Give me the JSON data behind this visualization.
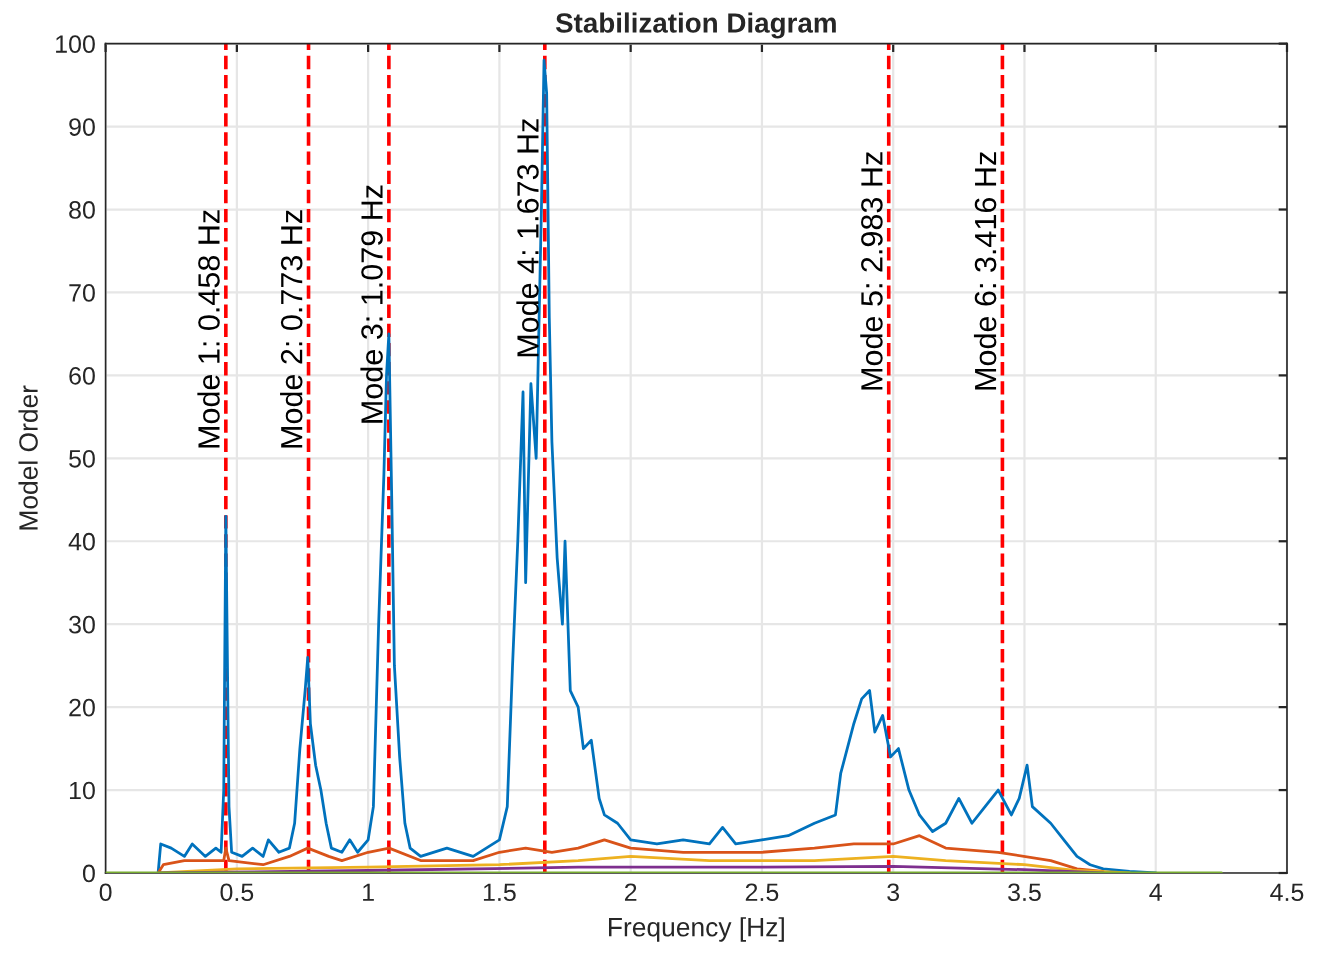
{
  "chart_data": {
    "type": "line",
    "title": "Stabilization Diagram",
    "xlabel": "Frequency [Hz]",
    "ylabel": "Model Order",
    "xlim": [
      0,
      4.5
    ],
    "xticks": [
      0,
      0.5,
      1,
      1.5,
      2,
      2.5,
      3,
      3.5,
      4,
      4.5
    ],
    "ylim": [
      0,
      100
    ],
    "yticks": [
      0,
      10,
      20,
      30,
      40,
      50,
      60,
      70,
      80,
      90,
      100
    ],
    "grid": true,
    "marker": "none",
    "line_style": "solid",
    "series": [
      {
        "color": "#0072bd",
        "x": [
          0.2,
          0.21,
          0.25,
          0.3,
          0.33,
          0.38,
          0.42,
          0.44,
          0.45,
          0.458,
          0.47,
          0.48,
          0.52,
          0.56,
          0.6,
          0.62,
          0.66,
          0.7,
          0.72,
          0.74,
          0.76,
          0.77,
          0.78,
          0.8,
          0.82,
          0.84,
          0.86,
          0.9,
          0.93,
          0.96,
          1.0,
          1.02,
          1.04,
          1.06,
          1.07,
          1.079,
          1.09,
          1.1,
          1.12,
          1.14,
          1.16,
          1.2,
          1.3,
          1.4,
          1.45,
          1.5,
          1.53,
          1.55,
          1.57,
          1.59,
          1.6,
          1.62,
          1.64,
          1.66,
          1.67,
          1.68,
          1.69,
          1.7,
          1.72,
          1.74,
          1.75,
          1.77,
          1.8,
          1.82,
          1.85,
          1.88,
          1.9,
          1.95,
          2.0,
          2.1,
          2.2,
          2.3,
          2.35,
          2.4,
          2.5,
          2.6,
          2.7,
          2.78,
          2.8,
          2.85,
          2.88,
          2.91,
          2.93,
          2.96,
          2.99,
          3.02,
          3.06,
          3.1,
          3.15,
          3.2,
          3.25,
          3.3,
          3.35,
          3.4,
          3.45,
          3.48,
          3.51,
          3.53,
          3.6,
          3.65,
          3.7,
          3.75,
          3.8,
          3.9,
          4.0
        ],
        "values": [
          0,
          3.5,
          3,
          2,
          3.5,
          2,
          3,
          2.5,
          10,
          43,
          8,
          2.5,
          2,
          3,
          2,
          4,
          2.5,
          3,
          6,
          15,
          22,
          26,
          18,
          13,
          10,
          6,
          3,
          2.5,
          4,
          2.5,
          4,
          8,
          30,
          48,
          60,
          65,
          45,
          25,
          14,
          6,
          3,
          2,
          3,
          2,
          3,
          4,
          8,
          25,
          40,
          58,
          35,
          59,
          50,
          80,
          98,
          94,
          67,
          52,
          38,
          30,
          40,
          22,
          20,
          15,
          16,
          9,
          7,
          6,
          4,
          3.5,
          4,
          3.5,
          5.5,
          3.5,
          4,
          4.5,
          6,
          7,
          12,
          18,
          21,
          22,
          17,
          19,
          14,
          15,
          10,
          7,
          5,
          6,
          9,
          6,
          8,
          10,
          7,
          9,
          13,
          8,
          6,
          4,
          2,
          1,
          0.5,
          0.2,
          0
        ]
      },
      {
        "color": "#d95319",
        "x": [
          0.2,
          0.22,
          0.3,
          0.45,
          0.458,
          0.47,
          0.6,
          0.7,
          0.77,
          0.85,
          0.9,
          1.0,
          1.08,
          1.2,
          1.4,
          1.5,
          1.6,
          1.7,
          1.8,
          1.9,
          2.0,
          2.2,
          2.5,
          2.7,
          2.85,
          3.0,
          3.1,
          3.2,
          3.4,
          3.6,
          3.7,
          3.8
        ],
        "values": [
          0,
          1,
          1.5,
          1.5,
          3,
          1.5,
          1,
          2,
          3,
          2,
          1.5,
          2.5,
          3,
          1.5,
          1.5,
          2.5,
          3,
          2.5,
          3,
          4,
          3,
          2.5,
          2.5,
          3,
          3.5,
          3.5,
          4.5,
          3,
          2.5,
          1.5,
          0.5,
          0.2
        ]
      },
      {
        "color": "#edb120",
        "x": [
          0.2,
          0.5,
          1.0,
          1.5,
          1.8,
          2.0,
          2.3,
          2.7,
          3.0,
          3.2,
          3.5,
          3.7,
          3.9
        ],
        "values": [
          0,
          0.5,
          0.7,
          1,
          1.5,
          2,
          1.5,
          1.5,
          2,
          1.5,
          1,
          0.3,
          0
        ]
      },
      {
        "color": "#7e2f8e",
        "x": [
          0.2,
          1.0,
          1.8,
          2.5,
          3.0,
          3.5,
          3.8
        ],
        "values": [
          0,
          0.3,
          0.7,
          0.7,
          0.8,
          0.4,
          0
        ]
      },
      {
        "color": "#77ac30",
        "x": [
          0,
          4.25
        ],
        "values": [
          0,
          0
        ]
      }
    ],
    "ref_lines": [
      {
        "axis": "x",
        "value": 0.458,
        "color": "#ff0000",
        "line_style": "dashed"
      },
      {
        "axis": "x",
        "value": 0.773,
        "color": "#ff0000",
        "line_style": "dashed"
      },
      {
        "axis": "x",
        "value": 1.079,
        "color": "#ff0000",
        "line_style": "dashed"
      },
      {
        "axis": "x",
        "value": 1.673,
        "color": "#ff0000",
        "line_style": "dashed"
      },
      {
        "axis": "x",
        "value": 2.983,
        "color": "#ff0000",
        "line_style": "dashed"
      },
      {
        "axis": "x",
        "value": 3.416,
        "color": "#ff0000",
        "line_style": "dashed"
      }
    ],
    "annotations": [
      {
        "text": "Mode 1: 0.458 Hz",
        "x": 0.458,
        "y": 51
      },
      {
        "text": "Mode 2: 0.773 Hz",
        "x": 0.773,
        "y": 51
      },
      {
        "text": "Mode 3: 1.079 Hz",
        "x": 1.079,
        "y": 54
      },
      {
        "text": "Mode 4: 1.673 Hz",
        "x": 1.673,
        "y": 62
      },
      {
        "text": "Mode 5: 2.983 Hz",
        "x": 2.983,
        "y": 58
      },
      {
        "text": "Mode 6: 3.416 Hz",
        "x": 3.416,
        "y": 58
      }
    ]
  }
}
